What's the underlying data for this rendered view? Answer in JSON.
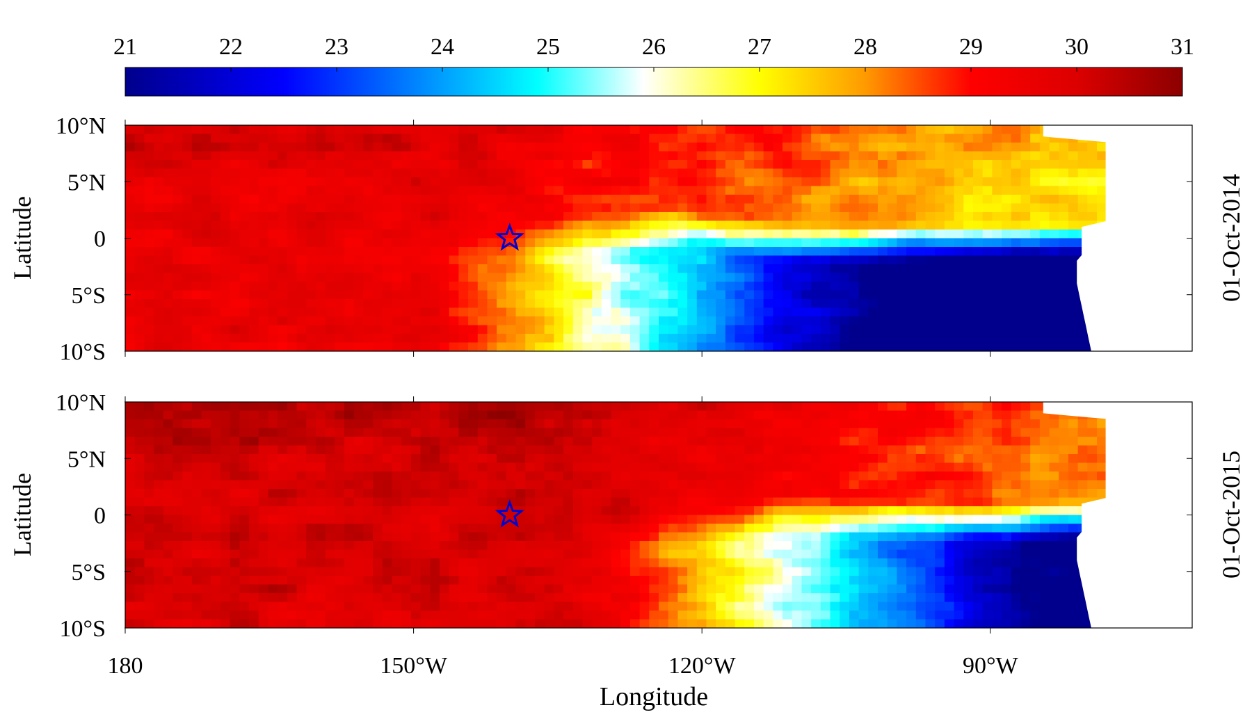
{
  "colorbar": {
    "tick_labels": [
      "21",
      "22",
      "23",
      "24",
      "25",
      "26",
      "27",
      "28",
      "29",
      "30",
      "31"
    ],
    "min": 21,
    "max": 31,
    "colormap_anchors": [
      {
        "v": 21.0,
        "c": "#00008c"
      },
      {
        "v": 22.5,
        "c": "#0000ff"
      },
      {
        "v": 24.2,
        "c": "#00b4ff"
      },
      {
        "v": 24.9,
        "c": "#00ffff"
      },
      {
        "v": 25.9,
        "c": "#ffffff"
      },
      {
        "v": 27.0,
        "c": "#ffff00"
      },
      {
        "v": 28.0,
        "c": "#ff9a00"
      },
      {
        "v": 29.0,
        "c": "#ff0000"
      },
      {
        "v": 30.0,
        "c": "#dc0000"
      },
      {
        "v": 31.0,
        "c": "#8c0000"
      }
    ]
  },
  "xaxis": {
    "label": "Longitude",
    "tick_labels": [
      "180",
      "150°W",
      "120°W",
      "90°W"
    ],
    "tick_values": [
      180,
      150,
      120,
      90
    ],
    "range_deg_west": [
      180,
      69
    ]
  },
  "yaxis": {
    "label": "Latitude",
    "tick_labels": [
      "10°N",
      "5°N",
      "0",
      "5°S",
      "10°S"
    ],
    "tick_values": [
      10,
      5,
      0,
      -5,
      -10
    ],
    "range": [
      -10,
      10
    ]
  },
  "panels": [
    {
      "date_label": "01-Oct-2014",
      "marker": {
        "symbol": "star",
        "lon_deg_west": 140,
        "lat": 0,
        "color": "#0000d0"
      },
      "field": {
        "west_value": 29.6,
        "front_lon_deg_west": [
          140,
          123,
          108
        ],
        "front_lat": [
          0.5,
          1.5,
          0.0
        ],
        "cold_value": 21.6
      }
    },
    {
      "date_label": "01-Oct-2015",
      "marker": {
        "symbol": "star",
        "lon_deg_west": 140,
        "lat": 0,
        "color": "#0000d0"
      },
      "field": {
        "west_value": 30.0,
        "front_lon_deg_west": [
          125,
          112,
          95
        ],
        "front_lat": [
          -1.0,
          0.5,
          0.0
        ],
        "cold_value": 22.6
      }
    }
  ]
}
